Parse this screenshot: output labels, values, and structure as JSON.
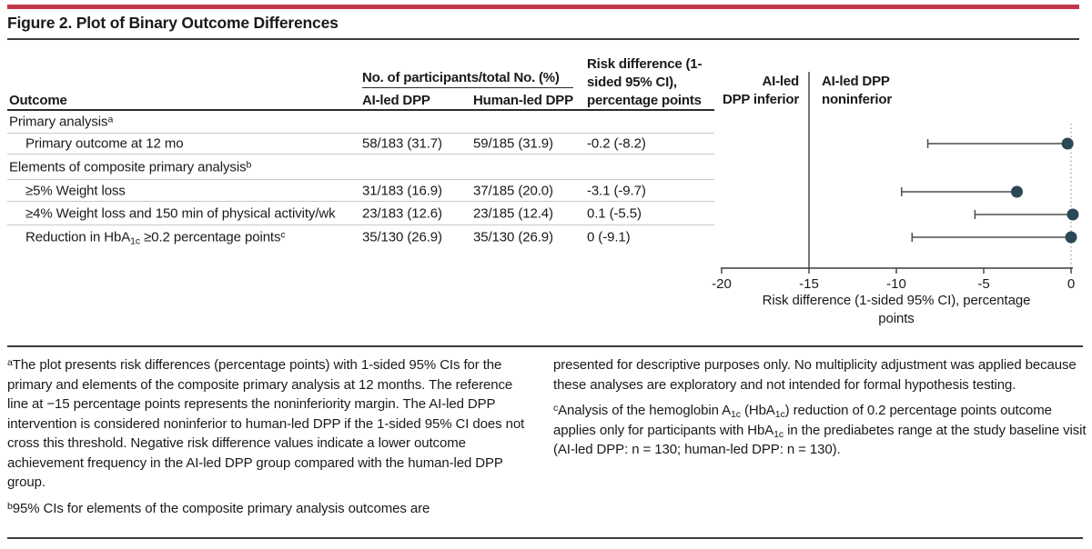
{
  "figure": {
    "title": "Figure 2. Plot of Binary Outcome Differences"
  },
  "colors": {
    "accent_red": "#C23747",
    "rule_dark": "#3d3d3d",
    "dot": "#2B4856",
    "whisker": "#4d4d4d",
    "zero_line": "#9a9a9a"
  },
  "table": {
    "outcome_header": "Outcome",
    "group_header": "No. of participants/total No. (%)",
    "col_ai": "AI-led DPP",
    "col_human": "Human-led DPP",
    "col_risk": "Risk difference (1-sided 95% CI), percentage points",
    "rows": [
      {
        "type": "section",
        "parts": [
          {
            "t": "Primary analysis"
          },
          {
            "t": "a",
            "sup": true
          }
        ]
      },
      {
        "type": "data",
        "parts": [
          {
            "t": "Primary outcome at 12 mo"
          }
        ],
        "ai": "58/183 (31.7)",
        "human": "59/185 (31.9)",
        "rd": "-0.2 (-8.2)"
      },
      {
        "type": "section",
        "parts": [
          {
            "t": "Elements of composite primary analysis"
          },
          {
            "t": "b",
            "sup": true
          }
        ]
      },
      {
        "type": "data",
        "parts": [
          {
            "t": "≥5% Weight loss"
          }
        ],
        "ai": "31/183 (16.9)",
        "human": "37/185 (20.0)",
        "rd": "-3.1 (-9.7)"
      },
      {
        "type": "data",
        "parts": [
          {
            "t": "≥4% Weight loss and 150 min of physical activity/wk"
          }
        ],
        "ai": "23/183 (12.6)",
        "human": "23/185 (12.4)",
        "rd": "0.1 (-5.5)"
      },
      {
        "type": "data",
        "parts": [
          {
            "t": "Reduction in HbA"
          },
          {
            "t": "1c",
            "sub": true
          },
          {
            "t": " ≥0.2 percentage points"
          },
          {
            "t": "c",
            "sup": true
          }
        ],
        "ai": "35/130 (26.9)",
        "human": "35/130 (26.9)",
        "rd": "0 (-9.1)"
      }
    ]
  },
  "plot": {
    "inferior_line1": "AI-led",
    "inferior_line2": "DPP inferior",
    "noninferior_line1": "AI-led DPP",
    "noninferior_line2": "noninferior",
    "axis_label": "Risk difference (1-sided 95% CI), percentage points"
  },
  "chart_data": {
    "type": "scatter",
    "subtype": "forest-plot",
    "title": "Plot of Binary Outcome Differences",
    "xlabel": "Risk difference (1-sided 95% CI), percentage points",
    "xlim": [
      -20,
      0.5
    ],
    "x_ticks": [
      -20,
      -15,
      -10,
      -5,
      0
    ],
    "reference_line_x": -15,
    "zero_line_x": 0,
    "region_labels": [
      "AI-led DPP inferior",
      "AI-led DPP noninferior"
    ],
    "points": [
      {
        "label": "Primary outcome at 12 mo",
        "estimate": -0.2,
        "ci_lower_1sided_95": -8.2
      },
      {
        "label": "≥5% Weight loss",
        "estimate": -3.1,
        "ci_lower_1sided_95": -9.7
      },
      {
        "label": "≥4% Weight loss and 150 min of physical activity/wk",
        "estimate": 0.1,
        "ci_lower_1sided_95": -5.5
      },
      {
        "label": "Reduction in HbA1c ≥0.2 percentage points",
        "estimate": 0,
        "ci_lower_1sided_95": -9.1
      }
    ]
  },
  "footnotes": {
    "left": [
      {
        "marker": "a",
        "parts": [
          {
            "t": "The plot presents risk differences (percentage points) with 1-sided 95% CIs for the primary and elements of the composite primary analysis at 12 months. The reference line at −15 percentage points represents the noninferiority margin. The AI-led DPP intervention is considered noninferior to human-led DPP if the 1-sided 95% CI does not cross this threshold. Negative risk difference values indicate a lower outcome achievement frequency in the AI-led DPP group compared with the human-led DPP group."
          }
        ]
      },
      {
        "marker": "b",
        "parts": [
          {
            "t": "95% CIs for elements of the composite primary analysis outcomes are"
          }
        ]
      }
    ],
    "right": [
      {
        "marker": "",
        "parts": [
          {
            "t": "presented for descriptive purposes only. No multiplicity adjustment was applied because these analyses are exploratory and not intended for formal hypothesis testing."
          }
        ]
      },
      {
        "marker": "c",
        "parts": [
          {
            "t": "Analysis of the hemoglobin A"
          },
          {
            "t": "1c",
            "sub": true
          },
          {
            "t": " (HbA"
          },
          {
            "t": "1c",
            "sub": true
          },
          {
            "t": ") reduction of 0.2 percentage points outcome applies only for participants with HbA"
          },
          {
            "t": "1c",
            "sub": true
          },
          {
            "t": " in the prediabetes range at the study baseline visit (AI-led DPP: n = 130; human-led DPP: n = 130)."
          }
        ]
      }
    ]
  }
}
